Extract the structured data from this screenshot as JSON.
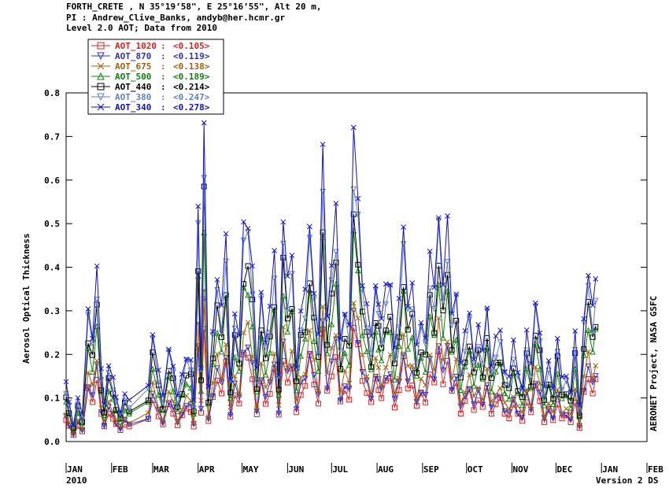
{
  "header": {
    "line1": "FORTH_CRETE , N 35°19’58\", E 25°16’55\", Alt 20 m,",
    "line2": "PI : Andrew_Clive_Banks, andyb@her.hcmr.gr",
    "line3": "Level 2.0 AOT; Data from 2010"
  },
  "footer": {
    "year_label": "2010",
    "version_label": "Version 2 DS",
    "right_label": "AERONET Project, NASA GSFC"
  },
  "chart_data": {
    "type": "scatter",
    "title": "",
    "xlabel": "",
    "ylabel": "Aerosol Optical Thickness",
    "ylim": [
      0.0,
      0.8
    ],
    "xlim": [
      "2010-01-01",
      "2011-02-01"
    ],
    "y_ticks": [
      "0.0",
      "0.1",
      "0.2",
      "0.3",
      "0.4",
      "0.5",
      "0.6",
      "0.7",
      "0.8"
    ],
    "x_tick_labels": [
      "JAN",
      "FEB",
      "MAR",
      "APR",
      "MAY",
      "JUN",
      "JUL",
      "AUG",
      "SEP",
      "OCT",
      "NOV",
      "DEC",
      "JAN",
      "FEB"
    ],
    "legend_position": "top-left",
    "series": [
      {
        "name": "AOT_1020",
        "mean": "0.105",
        "color": "#e02020",
        "marker": "square"
      },
      {
        "name": "AOT_870",
        "mean": "0.119",
        "color": "#3030c0",
        "marker": "triangle-down"
      },
      {
        "name": "AOT_675",
        "mean": "0.138",
        "color": "#a06010",
        "marker": "x"
      },
      {
        "name": "AOT_500",
        "mean": "0.189",
        "color": "#108010",
        "marker": "triangle-up"
      },
      {
        "name": "AOT_440",
        "mean": "0.214",
        "color": "#000000",
        "marker": "square"
      },
      {
        "name": "AOT_380",
        "mean": "0.247",
        "color": "#6080c0",
        "marker": "triangle-down"
      },
      {
        "name": "AOT_340",
        "mean": "0.278",
        "color": "#1010c8",
        "marker": "x"
      }
    ],
    "aot340_daily": {
      "dates": [
        "2010-01-01",
        "2010-01-03",
        "2010-01-06",
        "2010-01-09",
        "2010-01-12",
        "2010-01-16",
        "2010-01-19",
        "2010-01-22",
        "2010-01-25",
        "2010-01-27",
        "2010-01-30",
        "2010-02-02",
        "2010-02-04",
        "2010-02-07",
        "2010-02-10",
        "2010-02-13",
        "2010-02-26",
        "2010-03-01",
        "2010-03-05",
        "2010-03-08",
        "2010-03-12",
        "2010-03-15",
        "2010-03-18",
        "2010-03-21",
        "2010-03-24",
        "2010-03-27",
        "2010-03-29",
        "2010-04-01",
        "2010-04-03",
        "2010-04-05",
        "2010-04-08",
        "2010-04-11",
        "2010-04-14",
        "2010-04-17",
        "2010-04-20",
        "2010-04-23",
        "2010-04-26",
        "2010-04-29",
        "2010-05-02",
        "2010-05-05",
        "2010-05-08",
        "2010-05-11",
        "2010-05-14",
        "2010-05-17",
        "2010-05-20",
        "2010-05-23",
        "2010-05-26",
        "2010-05-29",
        "2010-06-01",
        "2010-06-04",
        "2010-06-07",
        "2010-06-10",
        "2010-06-13",
        "2010-06-16",
        "2010-06-19",
        "2010-06-22",
        "2010-06-25",
        "2010-06-28",
        "2010-07-01",
        "2010-07-04",
        "2010-07-07",
        "2010-07-10",
        "2010-07-13",
        "2010-07-16",
        "2010-07-19",
        "2010-07-22",
        "2010-07-25",
        "2010-07-28",
        "2010-07-31",
        "2010-08-02",
        "2010-08-04",
        "2010-08-07",
        "2010-08-10",
        "2010-08-13",
        "2010-08-16",
        "2010-08-19",
        "2010-08-22",
        "2010-08-25",
        "2010-08-28",
        "2010-08-31",
        "2010-09-03",
        "2010-09-06",
        "2010-09-09",
        "2010-09-12",
        "2010-09-15",
        "2010-09-18",
        "2010-09-21",
        "2010-09-24",
        "2010-09-27",
        "2010-09-30",
        "2010-10-03",
        "2010-10-06",
        "2010-10-09",
        "2010-10-12",
        "2010-10-15",
        "2010-10-18",
        "2010-10-21",
        "2010-10-24",
        "2010-10-27",
        "2010-10-30",
        "2010-11-02",
        "2010-11-05",
        "2010-11-08",
        "2010-11-11",
        "2010-11-14",
        "2010-11-17",
        "2010-11-20",
        "2010-11-23",
        "2010-11-26",
        "2010-11-29",
        "2010-12-02",
        "2010-12-05",
        "2010-12-08",
        "2010-12-11",
        "2010-12-14",
        "2010-12-17",
        "2010-12-20",
        "2010-12-23",
        "2010-12-26",
        "2010-12-28"
      ],
      "values": [
        0.13,
        0.09,
        0.04,
        0.1,
        0.06,
        0.31,
        0.25,
        0.39,
        0.16,
        0.09,
        0.18,
        0.14,
        0.1,
        0.07,
        0.11,
        0.09,
        0.13,
        0.26,
        0.16,
        0.1,
        0.22,
        0.18,
        0.1,
        0.15,
        0.2,
        0.19,
        0.09,
        0.54,
        0.18,
        0.72,
        0.12,
        0.26,
        0.39,
        0.3,
        0.46,
        0.15,
        0.3,
        0.23,
        0.5,
        0.52,
        0.4,
        0.16,
        0.35,
        0.24,
        0.3,
        0.42,
        0.16,
        0.52,
        0.36,
        0.42,
        0.18,
        0.3,
        0.33,
        0.5,
        0.36,
        0.24,
        0.65,
        0.3,
        0.42,
        0.52,
        0.23,
        0.31,
        0.27,
        0.68,
        0.56,
        0.38,
        0.31,
        0.23,
        0.37,
        0.33,
        0.27,
        0.35,
        0.38,
        0.22,
        0.31,
        0.49,
        0.33,
        0.36,
        0.21,
        0.28,
        0.25,
        0.42,
        0.34,
        0.54,
        0.37,
        0.49,
        0.29,
        0.36,
        0.18,
        0.24,
        0.3,
        0.2,
        0.26,
        0.2,
        0.32,
        0.18,
        0.23,
        0.25,
        0.17,
        0.15,
        0.22,
        0.16,
        0.13,
        0.25,
        0.17,
        0.33,
        0.26,
        0.12,
        0.18,
        0.13,
        0.24,
        0.14,
        0.15,
        0.12,
        0.25,
        0.08,
        0.29,
        0.4,
        0.3,
        0.36
      ]
    }
  }
}
